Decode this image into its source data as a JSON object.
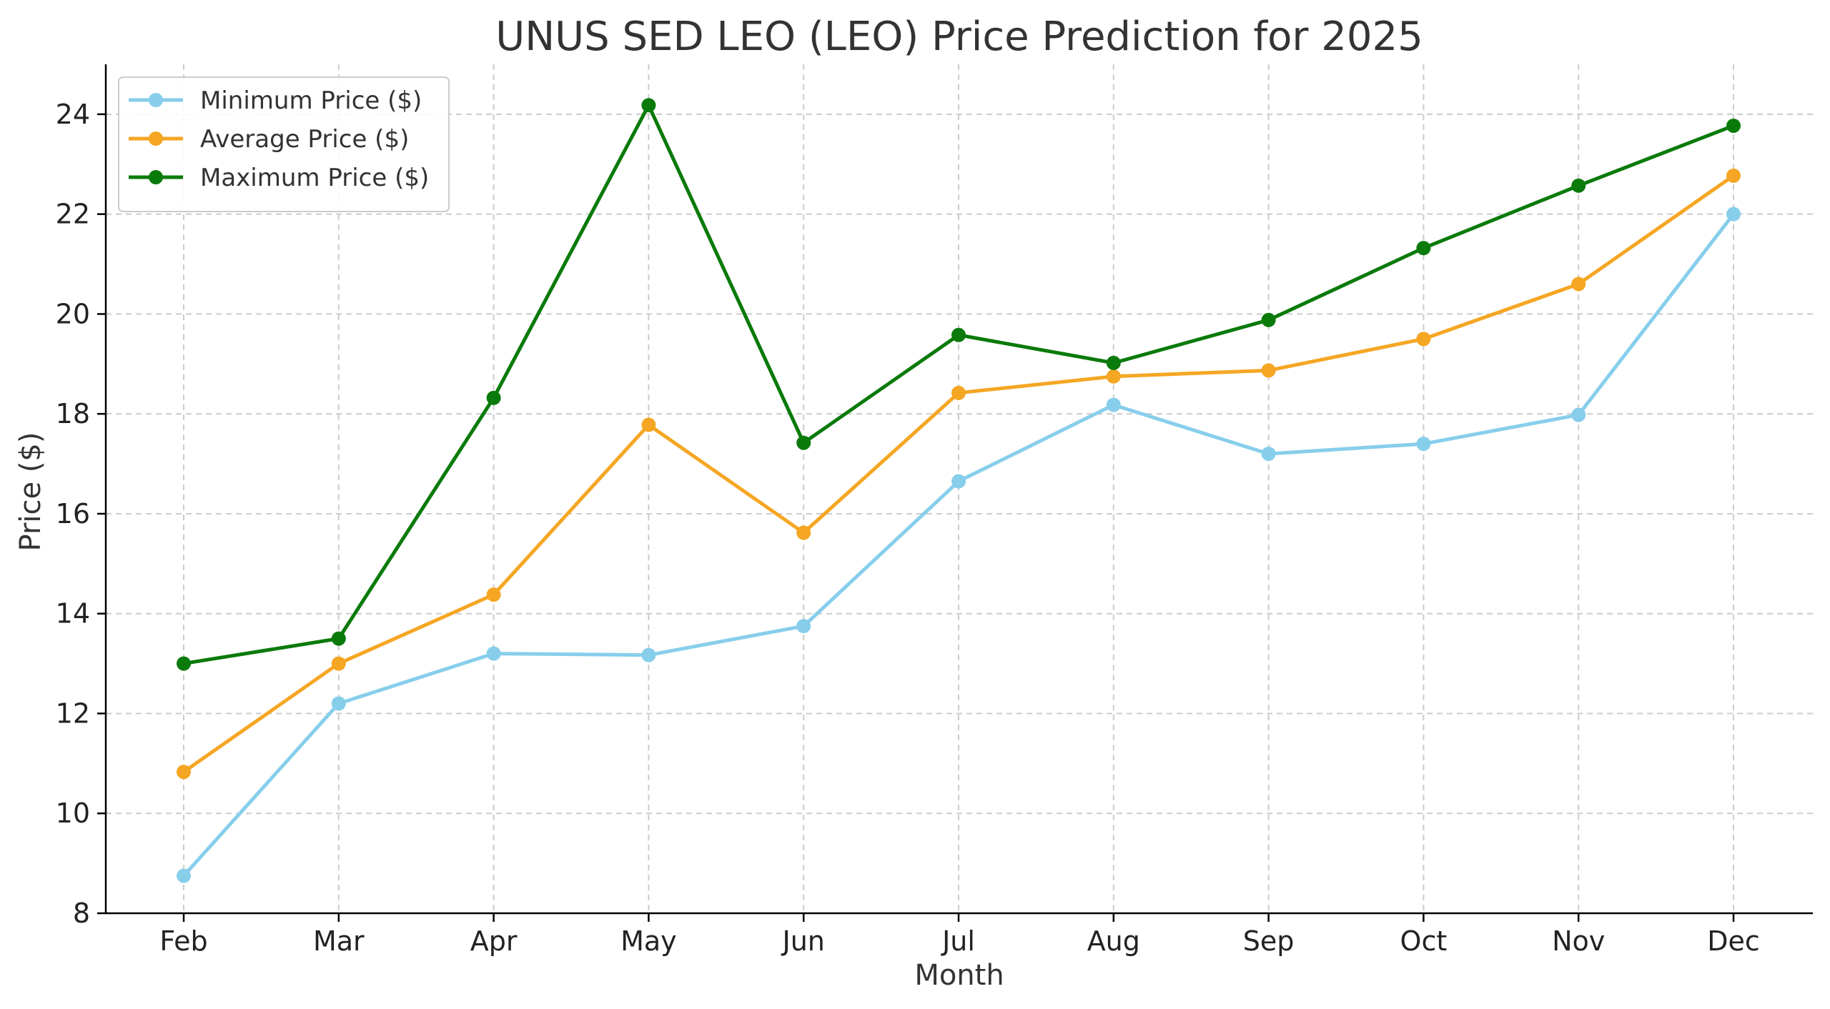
{
  "chart_data": {
    "type": "line",
    "title": "UNUS SED LEO (LEO) Price Prediction for 2025",
    "xlabel": "Month",
    "ylabel": "Price ($)",
    "categories": [
      "Feb",
      "Mar",
      "Apr",
      "May",
      "Jun",
      "Jul",
      "Aug",
      "Sep",
      "Oct",
      "Nov",
      "Dec"
    ],
    "ylim": [
      8,
      25
    ],
    "yticks": [
      8,
      10,
      12,
      14,
      16,
      18,
      20,
      22,
      24
    ],
    "grid": true,
    "legend_position": "upper-left",
    "series": [
      {
        "name": "Minimum Price ($)",
        "color": "#87CEEB",
        "values": [
          8.75,
          12.2,
          13.2,
          13.17,
          13.75,
          16.65,
          18.18,
          17.2,
          17.4,
          17.98,
          22.0
        ]
      },
      {
        "name": "Average Price ($)",
        "color": "#F5A623",
        "values": [
          10.83,
          13.0,
          14.38,
          17.78,
          15.62,
          18.42,
          18.75,
          18.87,
          19.5,
          20.6,
          22.77
        ]
      },
      {
        "name": "Maximum Price ($)",
        "color": "#0A7A0A",
        "values": [
          13.0,
          13.5,
          18.32,
          24.18,
          17.42,
          19.58,
          19.02,
          19.88,
          21.32,
          22.57,
          23.77
        ]
      }
    ]
  }
}
